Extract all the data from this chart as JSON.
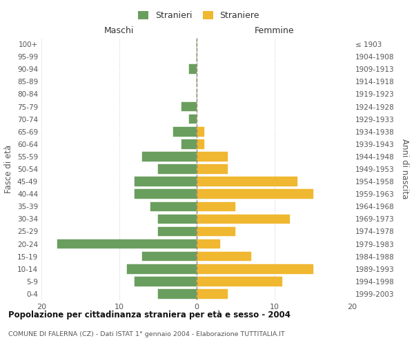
{
  "age_groups": [
    "0-4",
    "5-9",
    "10-14",
    "15-19",
    "20-24",
    "25-29",
    "30-34",
    "35-39",
    "40-44",
    "45-49",
    "50-54",
    "55-59",
    "60-64",
    "65-69",
    "70-74",
    "75-79",
    "80-84",
    "85-89",
    "90-94",
    "95-99",
    "100+"
  ],
  "birth_years": [
    "1999-2003",
    "1994-1998",
    "1989-1993",
    "1984-1988",
    "1979-1983",
    "1974-1978",
    "1969-1973",
    "1964-1968",
    "1959-1963",
    "1954-1958",
    "1949-1953",
    "1944-1948",
    "1939-1943",
    "1934-1938",
    "1929-1933",
    "1924-1928",
    "1919-1923",
    "1914-1918",
    "1909-1913",
    "1904-1908",
    "≤ 1903"
  ],
  "males": [
    5,
    8,
    9,
    7,
    18,
    5,
    5,
    6,
    8,
    8,
    5,
    7,
    2,
    3,
    1,
    2,
    0,
    0,
    1,
    0,
    0
  ],
  "females": [
    4,
    11,
    15,
    7,
    3,
    5,
    12,
    5,
    15,
    13,
    4,
    4,
    1,
    1,
    0,
    0,
    0,
    0,
    0,
    0,
    0
  ],
  "male_color": "#6a9e5e",
  "female_color": "#f0b730",
  "background_color": "#ffffff",
  "grid_color": "#cccccc",
  "title": "Popolazione per cittadinanza straniera per età e sesso - 2004",
  "subtitle": "COMUNE DI FALERNA (CZ) - Dati ISTAT 1° gennaio 2004 - Elaborazione TUTTITALIA.IT",
  "legend_males": "Stranieri",
  "legend_females": "Straniere",
  "xlabel_left": "Maschi",
  "xlabel_right": "Femmine",
  "ylabel_left": "Fasce di età",
  "ylabel_right": "Anni di nascita",
  "xlim": 20,
  "bar_height": 0.75
}
